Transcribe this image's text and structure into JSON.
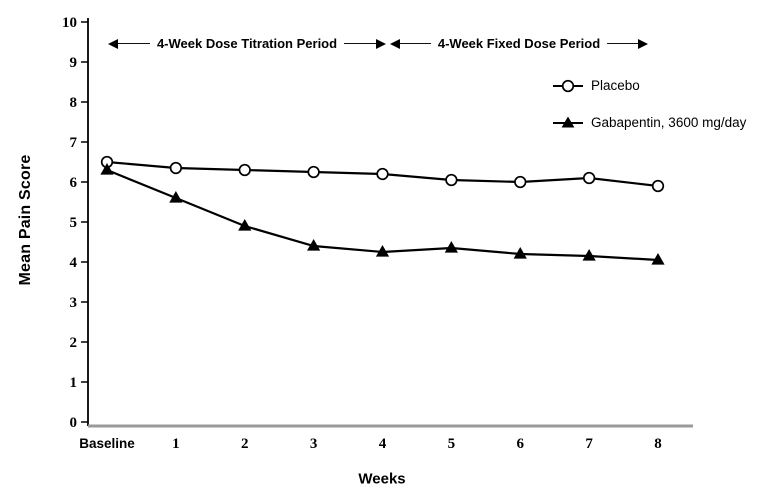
{
  "chart_data": {
    "type": "line",
    "title": "",
    "xlabel": "Weeks",
    "ylabel": "Mean Pain Score",
    "categories": [
      "Baseline",
      "1",
      "2",
      "3",
      "4",
      "5",
      "6",
      "7",
      "8"
    ],
    "ylim": [
      0,
      10
    ],
    "yticks": [
      0,
      1,
      2,
      3,
      4,
      5,
      6,
      7,
      8,
      9,
      10
    ],
    "grid": false,
    "legend_position": "upper right inside",
    "series": [
      {
        "name": "Placebo",
        "marker": "open-circle",
        "values": [
          6.5,
          6.35,
          6.3,
          6.25,
          6.2,
          6.05,
          6.0,
          6.1,
          5.9
        ]
      },
      {
        "name": "Gabapentin, 3600 mg/day",
        "marker": "filled-triangle",
        "values": [
          6.3,
          5.6,
          4.9,
          4.4,
          4.25,
          4.35,
          4.2,
          4.15,
          4.05
        ]
      }
    ],
    "annotations": [
      {
        "label": "4-Week Dose Titration Period",
        "x_start": "Baseline",
        "x_end": "4",
        "style": "double-headed-arrow"
      },
      {
        "label": "4-Week Fixed Dose Period",
        "x_start": "4",
        "x_end": "8",
        "style": "double-headed-arrow"
      }
    ]
  },
  "colors": {
    "series_line": "#000000",
    "marker_fill_open": "#ffffff",
    "marker_fill_solid": "#000000",
    "y_axis": "#000000",
    "x_axis": "#9a9a9a",
    "text": "#000000",
    "background": "#ffffff"
  }
}
